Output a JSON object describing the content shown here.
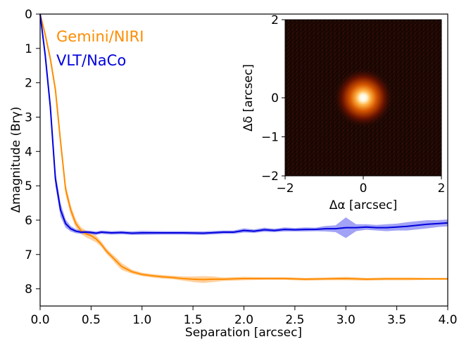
{
  "chart_data": [
    {
      "type": "line",
      "xlabel": "Separation [arcsec]",
      "ylabel": "Δmagnitude (Brγ)",
      "xlim": [
        0.0,
        4.0
      ],
      "ylim": [
        0,
        8.5
      ],
      "y_inverted": true,
      "xticks": [
        "0.0",
        "0.5",
        "1.0",
        "1.5",
        "2.0",
        "2.5",
        "3.0",
        "3.5",
        "4.0"
      ],
      "yticks": [
        "0",
        "1",
        "2",
        "3",
        "4",
        "5",
        "6",
        "7",
        "8"
      ],
      "grid": false,
      "legend_position": "top-left",
      "series": [
        {
          "name": "Gemini/NIRI",
          "color": "#ff8c00",
          "band_color": "#ffa94d",
          "x": [
            0.0,
            0.05,
            0.1,
            0.15,
            0.2,
            0.25,
            0.3,
            0.35,
            0.4,
            0.45,
            0.5,
            0.55,
            0.6,
            0.65,
            0.7,
            0.75,
            0.8,
            0.9,
            1.0,
            1.1,
            1.2,
            1.3,
            1.4,
            1.5,
            1.6,
            1.7,
            1.8,
            1.9,
            2.0,
            2.2,
            2.4,
            2.6,
            2.8,
            3.0,
            3.2,
            3.4,
            3.6,
            3.8,
            4.0
          ],
          "y": [
            0.0,
            0.6,
            1.3,
            2.2,
            3.7,
            5.1,
            5.7,
            6.1,
            6.3,
            6.4,
            6.45,
            6.55,
            6.7,
            6.9,
            7.05,
            7.2,
            7.35,
            7.5,
            7.58,
            7.62,
            7.65,
            7.67,
            7.7,
            7.72,
            7.73,
            7.72,
            7.72,
            7.71,
            7.7,
            7.7,
            7.7,
            7.72,
            7.71,
            7.7,
            7.72,
            7.71,
            7.71,
            7.71,
            7.71
          ],
          "err": [
            0.0,
            0.05,
            0.05,
            0.08,
            0.12,
            0.15,
            0.14,
            0.12,
            0.1,
            0.1,
            0.12,
            0.1,
            0.08,
            0.08,
            0.08,
            0.1,
            0.1,
            0.06,
            0.05,
            0.05,
            0.05,
            0.05,
            0.06,
            0.08,
            0.1,
            0.08,
            0.05,
            0.05,
            0.05,
            0.04,
            0.04,
            0.04,
            0.04,
            0.05,
            0.04,
            0.04,
            0.04,
            0.03,
            0.03
          ]
        },
        {
          "name": "VLT/NaCo",
          "color": "#0000dd",
          "band_color": "#5555ee",
          "x": [
            0.0,
            0.05,
            0.1,
            0.15,
            0.2,
            0.25,
            0.3,
            0.35,
            0.4,
            0.45,
            0.5,
            0.55,
            0.6,
            0.7,
            0.8,
            0.9,
            1.0,
            1.2,
            1.4,
            1.6,
            1.8,
            1.9,
            2.0,
            2.1,
            2.2,
            2.3,
            2.4,
            2.5,
            2.6,
            2.7,
            2.8,
            2.9,
            3.0,
            3.1,
            3.2,
            3.3,
            3.4,
            3.5,
            3.6,
            3.7,
            3.8,
            3.9,
            4.0
          ],
          "y": [
            0.0,
            1.2,
            2.7,
            4.8,
            5.7,
            6.1,
            6.25,
            6.32,
            6.35,
            6.35,
            6.36,
            6.38,
            6.35,
            6.37,
            6.36,
            6.38,
            6.37,
            6.37,
            6.37,
            6.38,
            6.35,
            6.35,
            6.3,
            6.32,
            6.28,
            6.3,
            6.27,
            6.28,
            6.27,
            6.27,
            6.25,
            6.25,
            6.22,
            6.22,
            6.2,
            6.22,
            6.22,
            6.2,
            6.18,
            6.15,
            6.12,
            6.1,
            6.08
          ],
          "err": [
            0.0,
            0.1,
            0.15,
            0.2,
            0.2,
            0.12,
            0.08,
            0.06,
            0.05,
            0.05,
            0.05,
            0.05,
            0.05,
            0.05,
            0.05,
            0.05,
            0.06,
            0.05,
            0.05,
            0.05,
            0.05,
            0.05,
            0.06,
            0.05,
            0.06,
            0.05,
            0.06,
            0.05,
            0.06,
            0.05,
            0.08,
            0.1,
            0.3,
            0.1,
            0.08,
            0.08,
            0.1,
            0.1,
            0.12,
            0.12,
            0.12,
            0.1,
            0.1
          ]
        }
      ]
    },
    {
      "type": "heatmap",
      "xlabel": "Δα [arcsec]",
      "ylabel": "Δδ [arcsec]",
      "xlim": [
        -2,
        2
      ],
      "ylim": [
        -2,
        2
      ],
      "xticks": [
        "−2",
        "0",
        "2"
      ],
      "yticks": [
        "2",
        "0",
        "−1",
        "−2"
      ],
      "ytick_values": [
        2,
        0,
        -1,
        -2
      ],
      "source_center": [
        0,
        0
      ],
      "colormap": [
        "#000000",
        "#3a0a02",
        "#8b1a00",
        "#d45500",
        "#ffaa33",
        "#ffffff"
      ]
    }
  ]
}
